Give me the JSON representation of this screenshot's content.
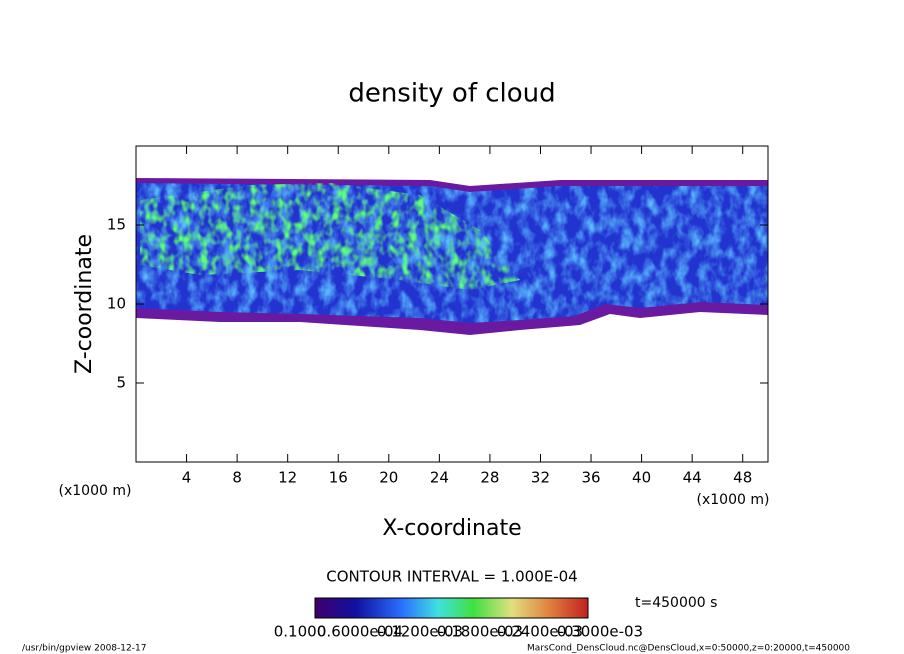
{
  "chart_data": {
    "type": "contour",
    "title": "density of cloud",
    "x_label": "X-coordinate",
    "y_label": "Z-coordinate",
    "x_unit": "(x1000 m)",
    "y_unit": "(x1000 m)",
    "xlim": [
      0,
      50
    ],
    "ylim": [
      0,
      20
    ],
    "xticks": [
      4,
      8,
      12,
      16,
      20,
      24,
      28,
      32,
      36,
      40,
      44,
      48
    ],
    "yticks": [
      5,
      10,
      15
    ],
    "contour_interval": "CONTOUR INTERVAL = 1.000E-04",
    "time_label": "t=450000 s",
    "colorbar_labels": [
      "0.1000",
      "0.6000e-04",
      "0.1200e-03",
      "0.1800e-03",
      "0.2400e-03",
      "0.3000e-03"
    ],
    "footer_left": "/usr/bin/gpview   2008-12-17",
    "footer_right": "MarsCond_DensCloud.nc@DensCloud,x=0:50000,z=0:20000,t=450000"
  }
}
